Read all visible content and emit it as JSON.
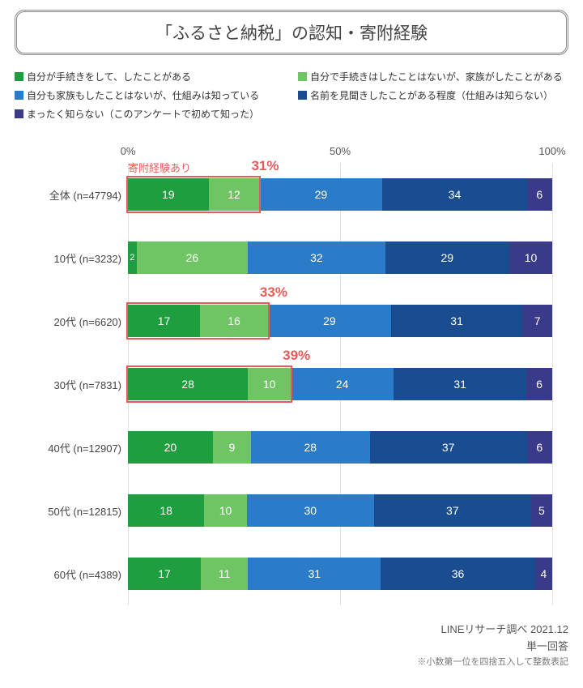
{
  "title": "「ふるさと納税」の認知・寄附経験",
  "legend": [
    {
      "label": "自分が手続きをして、したことがある",
      "color": "#1e9e3e"
    },
    {
      "label": "自分で手続きはしたことはないが、家族がしたことがある",
      "color": "#6fc463"
    },
    {
      "label": "自分も家族もしたことはないが、仕組みは知っている",
      "color": "#2a7cc9"
    },
    {
      "label": "名前を見聞きしたことがある程度（仕組みは知らない）",
      "color": "#1a4d8f"
    },
    {
      "label": "まったく知らない（このアンケートで初めて知った）",
      "color": "#3a3a8a"
    }
  ],
  "axis": {
    "ticks": [
      {
        "pos": 0,
        "label": "0%"
      },
      {
        "pos": 50,
        "label": "50%"
      },
      {
        "pos": 100,
        "label": "100%"
      }
    ],
    "gridlines": [
      0,
      50,
      100
    ]
  },
  "colors": [
    "#1e9e3e",
    "#6fc463",
    "#2a7cc9",
    "#1a4d8f",
    "#3a3a8a"
  ],
  "rows": [
    {
      "label": "全体 (n=47794)",
      "values": [
        19,
        12,
        29,
        34,
        6
      ],
      "highlight": {
        "upto": 31,
        "pct": "31%",
        "prelabel": "寄附経験あり"
      }
    },
    {
      "label": "10代 (n=3232)",
      "values": [
        2,
        26,
        32,
        29,
        10
      ],
      "hide_first": true
    },
    {
      "label": "20代 (n=6620)",
      "values": [
        17,
        16,
        29,
        31,
        7
      ],
      "highlight": {
        "upto": 33,
        "pct": "33%"
      }
    },
    {
      "label": "30代 (n=7831)",
      "values": [
        28,
        10,
        24,
        31,
        6
      ],
      "highlight": {
        "upto": 38,
        "pct": "39%"
      }
    },
    {
      "label": "40代 (n=12907)",
      "values": [
        20,
        9,
        28,
        37,
        6
      ]
    },
    {
      "label": "50代 (n=12815)",
      "values": [
        18,
        10,
        30,
        37,
        5
      ]
    },
    {
      "label": "60代 (n=4389)",
      "values": [
        17,
        11,
        31,
        36,
        4
      ]
    }
  ],
  "footer": {
    "source": "LINEリサーチ調べ 2021.12",
    "response": "単一回答",
    "note": "※小数第一位を四捨五入して整数表記"
  }
}
